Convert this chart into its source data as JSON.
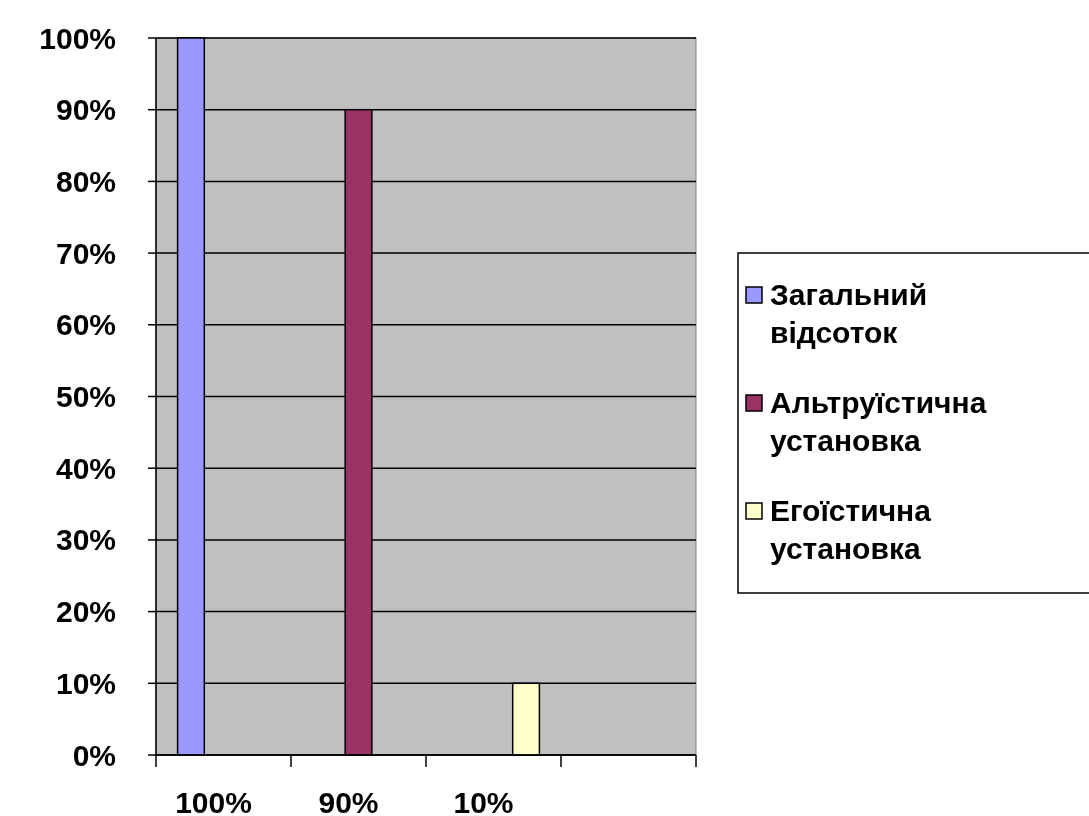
{
  "chart_data": {
    "type": "bar",
    "categories": [
      "100%",
      "90%",
      "10%",
      null
    ],
    "series": [
      {
        "name": "Загальний відсоток",
        "color": "#9999ff",
        "values": [
          100,
          null,
          null,
          null
        ]
      },
      {
        "name": "Альтруїстична установка",
        "color": "#993366",
        "values": [
          null,
          90,
          null,
          null
        ]
      },
      {
        "name": "Егоїстична установка",
        "color": "#ffffcc",
        "values": [
          null,
          null,
          10,
          null
        ]
      }
    ],
    "ylim": [
      0,
      100
    ],
    "yticks": [
      {
        "value": 0,
        "label": "0%"
      },
      {
        "value": 10,
        "label": "10%"
      },
      {
        "value": 20,
        "label": "20%"
      },
      {
        "value": 30,
        "label": "30%"
      },
      {
        "value": 40,
        "label": "40%"
      },
      {
        "value": 50,
        "label": "50%"
      },
      {
        "value": 60,
        "label": "60%"
      },
      {
        "value": 70,
        "label": "70%"
      },
      {
        "value": 80,
        "label": "80%"
      },
      {
        "value": 90,
        "label": "90%"
      },
      {
        "value": 100,
        "label": "100%"
      }
    ],
    "grid": "y",
    "legend": "right"
  }
}
